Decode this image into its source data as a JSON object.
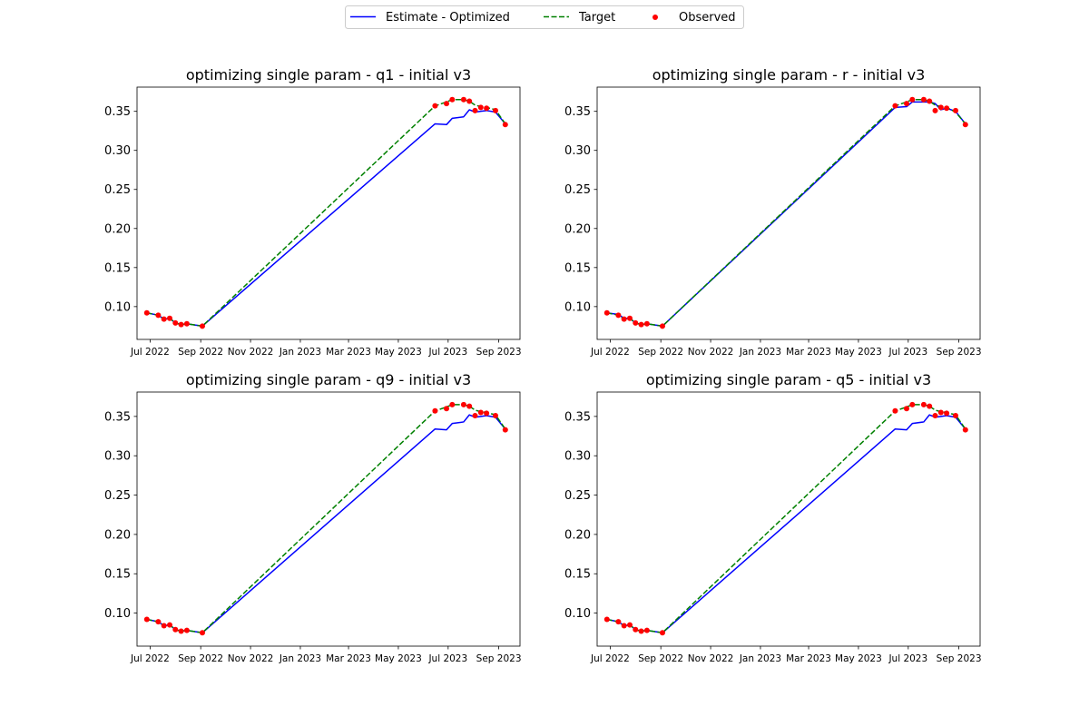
{
  "legend": {
    "placement": "top-center",
    "entries": [
      {
        "label": "Estimate - Optimized",
        "color": "#0000ff",
        "style": "solid"
      },
      {
        "label": "Target",
        "color": "#008000",
        "style": "dashed"
      },
      {
        "label": "Observed",
        "color": "#ff0000",
        "style": "marker"
      }
    ]
  },
  "chart_data": [
    {
      "type": "line",
      "title": "optimizing single param - q1 - initial v3",
      "xlabel": "",
      "ylabel": "",
      "xlim": [
        "2022-06-15",
        "2023-09-27"
      ],
      "ylim": [
        0.058,
        0.381
      ],
      "xticks": [
        {
          "date": "2022-07-01",
          "label": "Jul 2022"
        },
        {
          "date": "2022-09-01",
          "label": "Sep 2022"
        },
        {
          "date": "2022-11-01",
          "label": "Nov 2022"
        },
        {
          "date": "2023-01-01",
          "label": "Jan 2023"
        },
        {
          "date": "2023-03-01",
          "label": "Mar 2023"
        },
        {
          "date": "2023-05-01",
          "label": "May 2023"
        },
        {
          "date": "2023-07-01",
          "label": "Jul 2023"
        },
        {
          "date": "2023-09-01",
          "label": "Sep 2023"
        }
      ],
      "yticks": [
        "0.10",
        "0.15",
        "0.20",
        "0.25",
        "0.30",
        "0.35"
      ],
      "grid": false,
      "x": [
        "2022-06-27",
        "2022-07-11",
        "2022-07-18",
        "2022-07-25",
        "2022-08-01",
        "2022-08-08",
        "2022-08-15",
        "2022-09-03",
        "2023-06-15",
        "2023-06-29",
        "2023-07-06",
        "2023-07-20",
        "2023-07-27",
        "2023-08-03",
        "2023-08-10",
        "2023-08-17",
        "2023-08-28",
        "2023-09-09"
      ],
      "series": [
        {
          "name": "Estimate - Optimized",
          "values": [
            0.092,
            0.089,
            0.084,
            0.085,
            0.079,
            0.077,
            0.078,
            0.075,
            0.334,
            0.333,
            0.341,
            0.343,
            0.352,
            0.349,
            0.35,
            0.351,
            0.349,
            0.334
          ]
        },
        {
          "name": "Target",
          "values": [
            0.092,
            0.089,
            0.084,
            0.085,
            0.079,
            0.077,
            0.078,
            0.075,
            0.357,
            0.362,
            0.365,
            0.365,
            0.363,
            0.358,
            0.356,
            0.355,
            0.352,
            0.334
          ]
        },
        {
          "name": "Observed",
          "values": [
            0.092,
            0.089,
            0.084,
            0.085,
            0.079,
            0.077,
            0.078,
            0.075,
            0.357,
            0.36,
            0.365,
            0.365,
            0.363,
            0.351,
            0.355,
            0.354,
            0.351,
            0.333
          ]
        }
      ]
    },
    {
      "type": "line",
      "title": "optimizing single param - r - initial v3",
      "xlabel": "",
      "ylabel": "",
      "xlim": [
        "2022-06-15",
        "2023-09-27"
      ],
      "ylim": [
        0.058,
        0.381
      ],
      "xticks": [
        {
          "date": "2022-07-01",
          "label": "Jul 2022"
        },
        {
          "date": "2022-09-01",
          "label": "Sep 2022"
        },
        {
          "date": "2022-11-01",
          "label": "Nov 2022"
        },
        {
          "date": "2023-01-01",
          "label": "Jan 2023"
        },
        {
          "date": "2023-03-01",
          "label": "Mar 2023"
        },
        {
          "date": "2023-05-01",
          "label": "May 2023"
        },
        {
          "date": "2023-07-01",
          "label": "Jul 2023"
        },
        {
          "date": "2023-09-01",
          "label": "Sep 2023"
        }
      ],
      "yticks": [
        "0.10",
        "0.15",
        "0.20",
        "0.25",
        "0.30",
        "0.35"
      ],
      "grid": false,
      "x": [
        "2022-06-27",
        "2022-07-11",
        "2022-07-18",
        "2022-07-25",
        "2022-08-01",
        "2022-08-08",
        "2022-08-15",
        "2022-09-03",
        "2023-06-15",
        "2023-06-29",
        "2023-07-06",
        "2023-07-20",
        "2023-07-27",
        "2023-08-03",
        "2023-08-10",
        "2023-08-17",
        "2023-08-28",
        "2023-09-09"
      ],
      "series": [
        {
          "name": "Estimate - Optimized",
          "values": [
            0.092,
            0.09,
            0.085,
            0.085,
            0.079,
            0.077,
            0.078,
            0.075,
            0.355,
            0.356,
            0.362,
            0.362,
            0.362,
            0.36,
            0.352,
            0.354,
            0.35,
            0.334
          ]
        },
        {
          "name": "Target",
          "values": [
            0.092,
            0.089,
            0.084,
            0.085,
            0.079,
            0.077,
            0.078,
            0.075,
            0.357,
            0.362,
            0.365,
            0.365,
            0.363,
            0.358,
            0.356,
            0.355,
            0.349,
            0.334
          ]
        },
        {
          "name": "Observed",
          "values": [
            0.092,
            0.089,
            0.084,
            0.085,
            0.079,
            0.077,
            0.078,
            0.075,
            0.357,
            0.36,
            0.365,
            0.365,
            0.363,
            0.351,
            0.355,
            0.354,
            0.351,
            0.333
          ]
        }
      ]
    },
    {
      "type": "line",
      "title": "optimizing single param - q9 - initial v3",
      "xlabel": "",
      "ylabel": "",
      "xlim": [
        "2022-06-15",
        "2023-09-27"
      ],
      "ylim": [
        0.058,
        0.381
      ],
      "xticks": [
        {
          "date": "2022-07-01",
          "label": "Jul 2022"
        },
        {
          "date": "2022-09-01",
          "label": "Sep 2022"
        },
        {
          "date": "2022-11-01",
          "label": "Nov 2022"
        },
        {
          "date": "2023-01-01",
          "label": "Jan 2023"
        },
        {
          "date": "2023-03-01",
          "label": "Mar 2023"
        },
        {
          "date": "2023-05-01",
          "label": "May 2023"
        },
        {
          "date": "2023-07-01",
          "label": "Jul 2023"
        },
        {
          "date": "2023-09-01",
          "label": "Sep 2023"
        }
      ],
      "yticks": [
        "0.10",
        "0.15",
        "0.20",
        "0.25",
        "0.30",
        "0.35"
      ],
      "grid": false,
      "x": [
        "2022-06-27",
        "2022-07-11",
        "2022-07-18",
        "2022-07-25",
        "2022-08-01",
        "2022-08-08",
        "2022-08-15",
        "2022-09-03",
        "2023-06-15",
        "2023-06-29",
        "2023-07-06",
        "2023-07-20",
        "2023-07-27",
        "2023-08-03",
        "2023-08-10",
        "2023-08-17",
        "2023-08-28",
        "2023-09-09"
      ],
      "series": [
        {
          "name": "Estimate - Optimized",
          "values": [
            0.092,
            0.089,
            0.084,
            0.085,
            0.079,
            0.077,
            0.078,
            0.075,
            0.334,
            0.333,
            0.341,
            0.343,
            0.352,
            0.349,
            0.35,
            0.351,
            0.349,
            0.334
          ]
        },
        {
          "name": "Target",
          "values": [
            0.092,
            0.089,
            0.084,
            0.085,
            0.079,
            0.077,
            0.078,
            0.075,
            0.357,
            0.362,
            0.365,
            0.365,
            0.363,
            0.358,
            0.356,
            0.355,
            0.352,
            0.334
          ]
        },
        {
          "name": "Observed",
          "values": [
            0.092,
            0.089,
            0.084,
            0.085,
            0.079,
            0.077,
            0.078,
            0.075,
            0.357,
            0.36,
            0.365,
            0.365,
            0.363,
            0.351,
            0.355,
            0.354,
            0.351,
            0.333
          ]
        }
      ]
    },
    {
      "type": "line",
      "title": "optimizing single param - q5 - initial v3",
      "xlabel": "",
      "ylabel": "",
      "xlim": [
        "2022-06-15",
        "2023-09-27"
      ],
      "ylim": [
        0.058,
        0.381
      ],
      "xticks": [
        {
          "date": "2022-07-01",
          "label": "Jul 2022"
        },
        {
          "date": "2022-09-01",
          "label": "Sep 2022"
        },
        {
          "date": "2022-11-01",
          "label": "Nov 2022"
        },
        {
          "date": "2023-01-01",
          "label": "Jan 2023"
        },
        {
          "date": "2023-03-01",
          "label": "Mar 2023"
        },
        {
          "date": "2023-05-01",
          "label": "May 2023"
        },
        {
          "date": "2023-07-01",
          "label": "Jul 2023"
        },
        {
          "date": "2023-09-01",
          "label": "Sep 2023"
        }
      ],
      "yticks": [
        "0.10",
        "0.15",
        "0.20",
        "0.25",
        "0.30",
        "0.35"
      ],
      "grid": false,
      "x": [
        "2022-06-27",
        "2022-07-11",
        "2022-07-18",
        "2022-07-25",
        "2022-08-01",
        "2022-08-08",
        "2022-08-15",
        "2022-09-03",
        "2023-06-15",
        "2023-06-29",
        "2023-07-06",
        "2023-07-20",
        "2023-07-27",
        "2023-08-03",
        "2023-08-10",
        "2023-08-17",
        "2023-08-28",
        "2023-09-09"
      ],
      "series": [
        {
          "name": "Estimate - Optimized",
          "values": [
            0.092,
            0.089,
            0.084,
            0.085,
            0.079,
            0.077,
            0.078,
            0.075,
            0.334,
            0.333,
            0.341,
            0.343,
            0.352,
            0.349,
            0.35,
            0.351,
            0.349,
            0.334
          ]
        },
        {
          "name": "Target",
          "values": [
            0.092,
            0.089,
            0.084,
            0.085,
            0.079,
            0.077,
            0.078,
            0.075,
            0.357,
            0.362,
            0.365,
            0.365,
            0.363,
            0.358,
            0.356,
            0.355,
            0.352,
            0.334
          ]
        },
        {
          "name": "Observed",
          "values": [
            0.092,
            0.089,
            0.084,
            0.085,
            0.079,
            0.077,
            0.078,
            0.075,
            0.357,
            0.36,
            0.365,
            0.365,
            0.363,
            0.351,
            0.355,
            0.354,
            0.351,
            0.333
          ]
        }
      ]
    }
  ]
}
